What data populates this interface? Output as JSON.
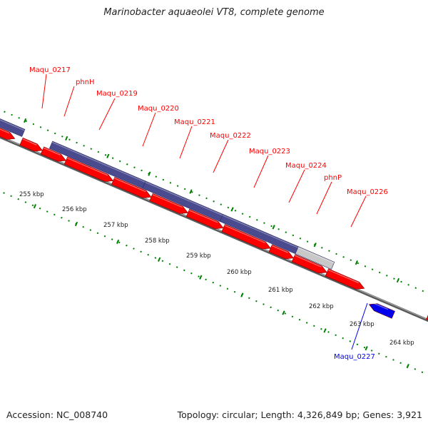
{
  "title": "Marinobacter aquaeolei VT8, complete genome",
  "footer": {
    "accession": "Accession: NC_008740",
    "summary": "Topology: circular; Length: 4,326,849 bp; Genes: 3,921"
  },
  "colors": {
    "forward_gene": "#ff0000",
    "reverse_gene": "#0000ee",
    "operon": "#4a4a8e",
    "operon_grey": "#c8c8c8",
    "tick": "#008000",
    "backbone": "#888888"
  },
  "kbp_ticks": [
    "255 kbp",
    "256 kbp",
    "257 kbp",
    "258 kbp",
    "259 kbp",
    "260 kbp",
    "261 kbp",
    "262 kbp",
    "263 kbp",
    "264 kbp"
  ],
  "gene_labels": [
    {
      "name": "Maqu_0217",
      "strand": "forward"
    },
    {
      "name": "phnH",
      "strand": "forward"
    },
    {
      "name": "Maqu_0219",
      "strand": "forward"
    },
    {
      "name": "Maqu_0220",
      "strand": "forward"
    },
    {
      "name": "Maqu_0221",
      "strand": "forward"
    },
    {
      "name": "Maqu_0222",
      "strand": "forward"
    },
    {
      "name": "Maqu_0223",
      "strand": "forward"
    },
    {
      "name": "Maqu_0224",
      "strand": "forward"
    },
    {
      "name": "phnP",
      "strand": "forward"
    },
    {
      "name": "Maqu_0226",
      "strand": "forward"
    },
    {
      "name": "Maqu_0227",
      "strand": "reverse"
    }
  ]
}
